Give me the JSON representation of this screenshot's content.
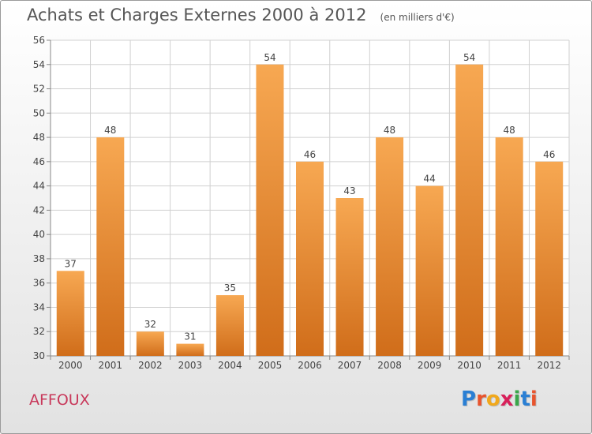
{
  "chart_data": {
    "type": "bar",
    "title": "Achats et Charges Externes 2000 à 2012",
    "subtitle": "(en milliers d'€)",
    "categories": [
      "2000",
      "2001",
      "2002",
      "2003",
      "2004",
      "2005",
      "2006",
      "2007",
      "2008",
      "2009",
      "2010",
      "2011",
      "2012"
    ],
    "values": [
      37,
      48,
      32,
      31,
      35,
      54,
      46,
      43,
      48,
      44,
      54,
      48,
      46
    ],
    "ylim": [
      30,
      56
    ],
    "yticks": [
      30,
      32,
      34,
      36,
      38,
      40,
      42,
      44,
      46,
      48,
      50,
      52,
      54,
      56
    ],
    "grid": true,
    "xlabel": "",
    "ylabel": ""
  },
  "commune": "AFFOUX",
  "logo": {
    "letters": [
      "P",
      "r",
      "o",
      "x",
      "i",
      "t",
      "i"
    ],
    "colors": [
      "#2a7fd4",
      "#e8542d",
      "#f0a81c",
      "#d8205a",
      "#3aa64a",
      "#2a7fd4",
      "#e8542d"
    ]
  },
  "colors": {
    "bar_light": "#f7a852",
    "bar_dark": "#d06d1a",
    "grid": "#d0d0d0"
  }
}
